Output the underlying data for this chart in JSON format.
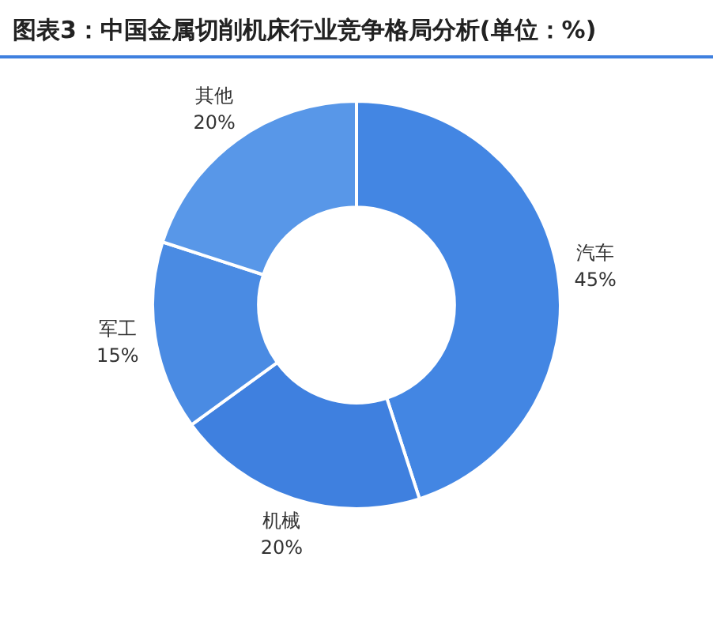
{
  "chart_data": {
    "type": "donut",
    "title": "图表3：中国金属切削机床行业竞争格局分析(单位：%)",
    "categories": [
      "汽车",
      "机械",
      "军工",
      "其他"
    ],
    "values": [
      45,
      20,
      15,
      20
    ],
    "value_labels": [
      "45%",
      "20%",
      "15%",
      "20%"
    ],
    "colors": [
      "#4386e3",
      "#3f80df",
      "#4a8be3",
      "#5897e8"
    ],
    "legend": false
  }
}
